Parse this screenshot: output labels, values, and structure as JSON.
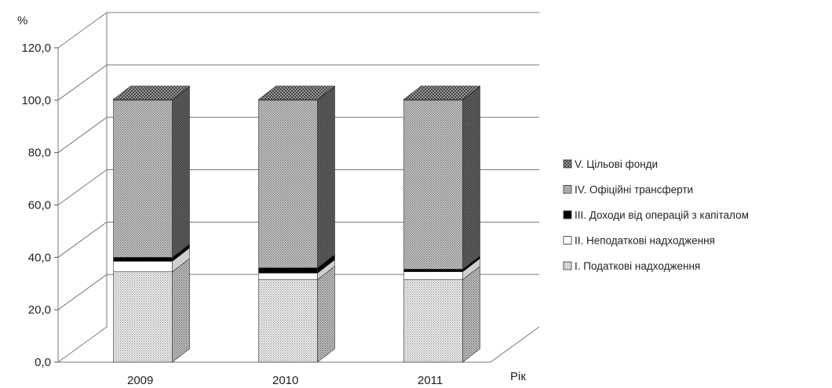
{
  "chart_data": {
    "type": "bar",
    "stacked": true,
    "three_d": true,
    "categories": [
      "2009",
      "2010",
      "2011"
    ],
    "series": [
      {
        "name": "І. Податкові надходження",
        "values": [
          34.5,
          31.5,
          31.5
        ],
        "color": "#e2e2e2",
        "pattern": "fine-dots"
      },
      {
        "name": "ІІ. Неподаткові надходження",
        "values": [
          4.0,
          2.5,
          3.0
        ],
        "color": "#ffffff",
        "pattern": "none"
      },
      {
        "name": "ІІІ. Доходи від операцій з капіталом",
        "values": [
          1.5,
          2.0,
          1.0
        ],
        "color": "#000000",
        "pattern": "solid"
      },
      {
        "name": "ІV. Офіційні трансферти",
        "values": [
          60.0,
          64.0,
          64.5
        ],
        "color": "#c4c4c4",
        "pattern": "dots"
      },
      {
        "name": "V. Цільові фонди",
        "values": [
          0.3,
          0.3,
          0.3
        ],
        "color": "#9a9a9a",
        "pattern": "crosshatch"
      }
    ],
    "ylabel": "%",
    "xlabel": "Рік",
    "ylim": [
      0,
      120
    ],
    "yticks": [
      "0,0",
      "20,0",
      "40,0",
      "60,0",
      "80,0",
      "100,0",
      "120,0"
    ],
    "grid": true,
    "legend_position": "right"
  }
}
